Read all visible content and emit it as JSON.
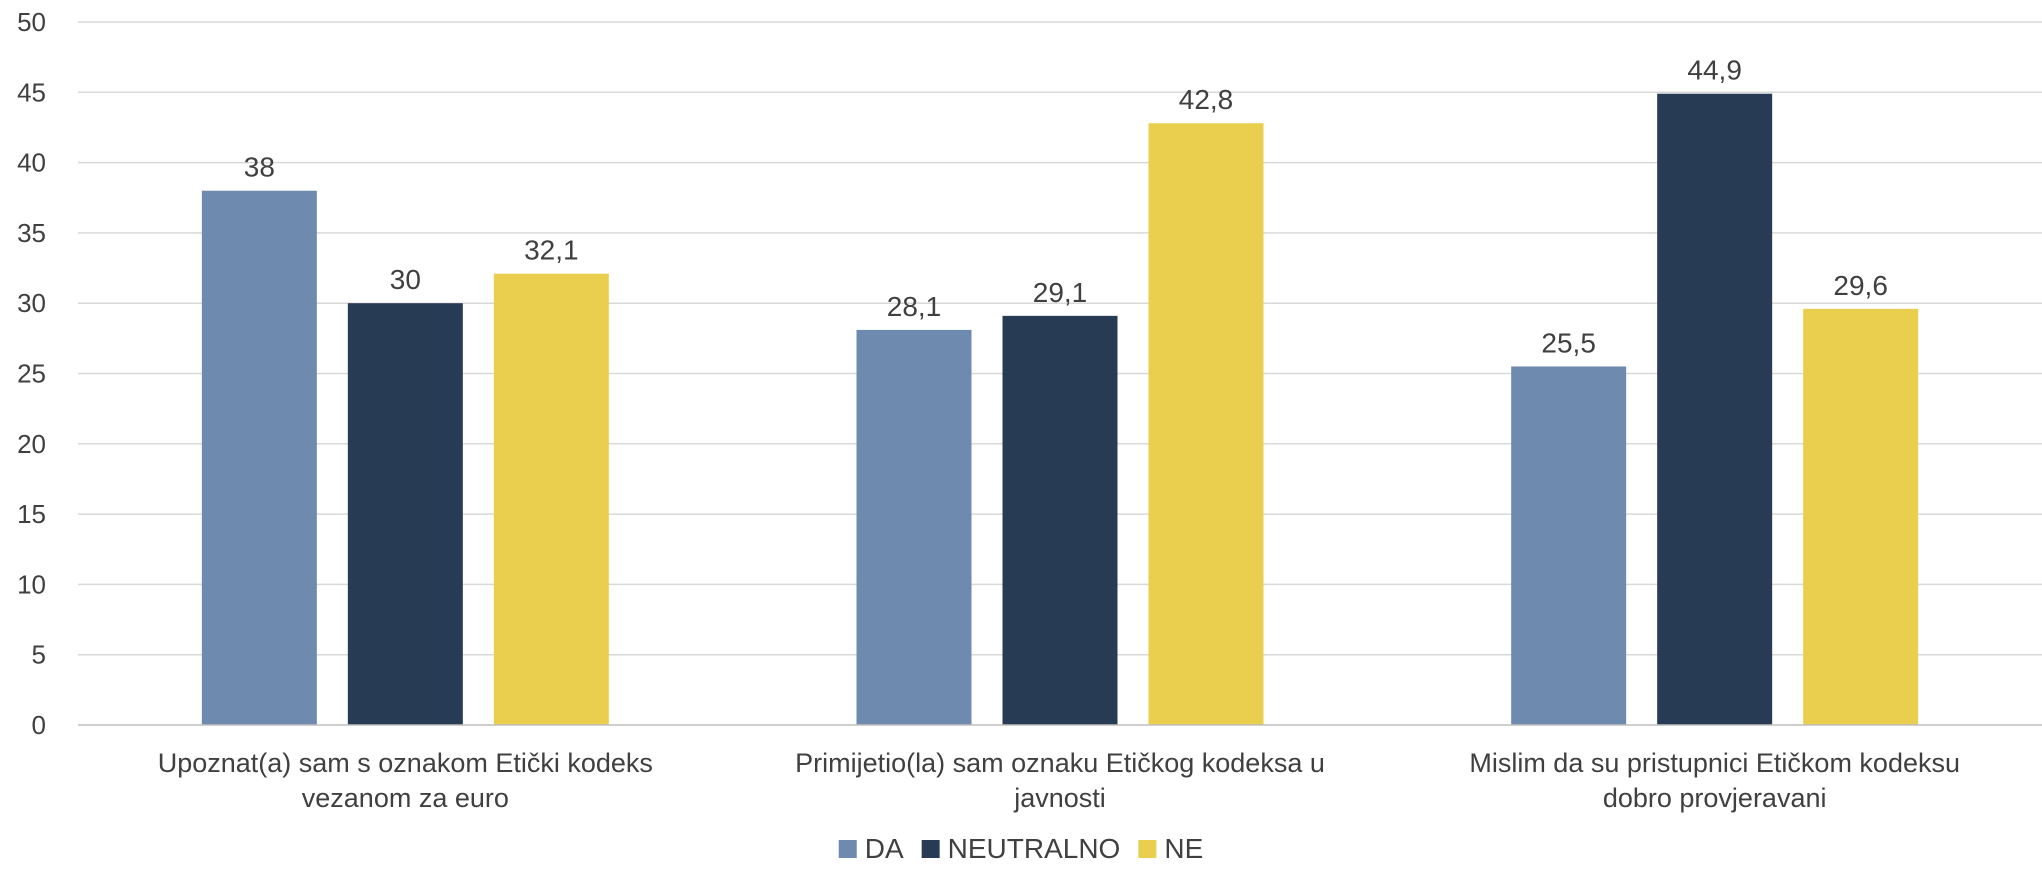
{
  "chart_data": {
    "type": "bar",
    "categories": [
      [
        "Upoznat(a) sam s oznakom Etički kodeks",
        "vezanom za euro"
      ],
      [
        "Primijetio(la) sam oznaku Etičkog kodeksa u",
        "javnosti"
      ],
      [
        "Mislim da su pristupnici Etičkom kodeksu",
        "dobro provjeravani"
      ]
    ],
    "series": [
      {
        "name": "DA",
        "color": "#6e8aae",
        "values": [
          38,
          28.1,
          25.5
        ],
        "labels": [
          "38",
          "28,1",
          "25,5"
        ]
      },
      {
        "name": "NEUTRALNO",
        "color": "#283b54",
        "values": [
          30,
          29.1,
          44.9
        ],
        "labels": [
          "30",
          "29,1",
          "44,9"
        ]
      },
      {
        "name": "NE",
        "color": "#eacf4e",
        "values": [
          32.1,
          42.8,
          29.6
        ],
        "labels": [
          "32,1",
          "42,8",
          "29,6"
        ]
      }
    ],
    "ylim": [
      0,
      50
    ],
    "yticks": [
      0,
      5,
      10,
      15,
      20,
      25,
      30,
      35,
      40,
      45,
      50
    ],
    "grid": true,
    "legend": "bottom-center",
    "title": "",
    "xlabel": "",
    "ylabel": ""
  }
}
